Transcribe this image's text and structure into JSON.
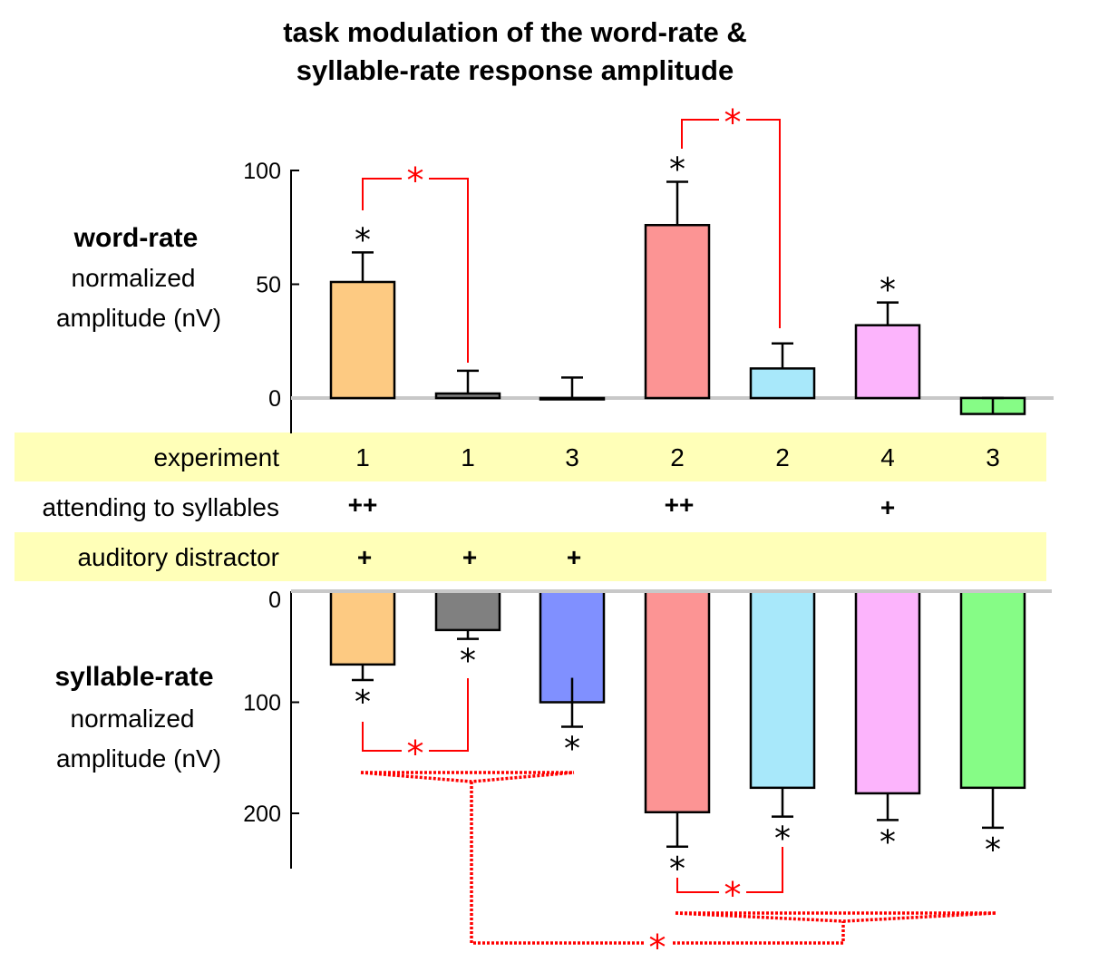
{
  "title_line1": "task modulation of the word-rate &",
  "title_line2": "syllable-rate response amplitude",
  "upper_ylabel": {
    "bold": "word-rate",
    "line2": "normalized",
    "line3": "amplitude (nV)"
  },
  "lower_ylabel": {
    "bold": "syllable-rate",
    "line2": "normalized",
    "line3": "amplitude (nV)"
  },
  "table": {
    "rows": [
      {
        "label": "experiment",
        "highlight": true,
        "values": [
          "1",
          "1",
          "3",
          "2",
          "2",
          "4",
          "3"
        ]
      },
      {
        "label": "attending to syllables",
        "highlight": false,
        "values": [
          "++",
          "",
          "",
          "++",
          "",
          "+",
          ""
        ]
      },
      {
        "label": "auditory distractor",
        "highlight": true,
        "values": [
          "+",
          "+",
          "+",
          "",
          "",
          "",
          ""
        ]
      }
    ],
    "highlight_color": "#ffffb8"
  },
  "colors": [
    "#fdca82",
    "#808080",
    "#8090ff",
    "#fc9494",
    "#a8e8fa",
    "#fcb4fc",
    "#86fc86"
  ],
  "significance_color": "#ff0000",
  "star_symbol": "*",
  "chart_data": [
    {
      "type": "bar",
      "panel": "word-rate",
      "yticks": [
        0,
        50,
        100
      ],
      "ylim": [
        -14,
        100
      ],
      "values": [
        51,
        2,
        0,
        76,
        13,
        32,
        -7
      ],
      "error": [
        13,
        10,
        9,
        19,
        11,
        10,
        7
      ],
      "significant": [
        true,
        false,
        false,
        true,
        false,
        true,
        false
      ],
      "comparisons": [
        {
          "bars": [
            0,
            1
          ],
          "significant": true
        },
        {
          "bars": [
            3,
            4
          ],
          "significant": true
        }
      ]
    },
    {
      "type": "bar",
      "panel": "syllable-rate",
      "inverted": true,
      "yticks": [
        0,
        100,
        200
      ],
      "ylim": [
        0,
        250
      ],
      "values": [
        66,
        35,
        100,
        199,
        177,
        182,
        177
      ],
      "error": [
        14,
        8,
        22,
        31,
        26,
        24,
        36
      ],
      "significant": [
        true,
        true,
        true,
        true,
        true,
        true,
        true
      ],
      "comparisons": [
        {
          "bars": [
            0,
            1
          ],
          "significant": true
        },
        {
          "groups": [
            [
              0,
              1,
              2
            ],
            [
              3,
              4,
              5,
              6
            ]
          ],
          "significant": true
        }
      ]
    }
  ]
}
